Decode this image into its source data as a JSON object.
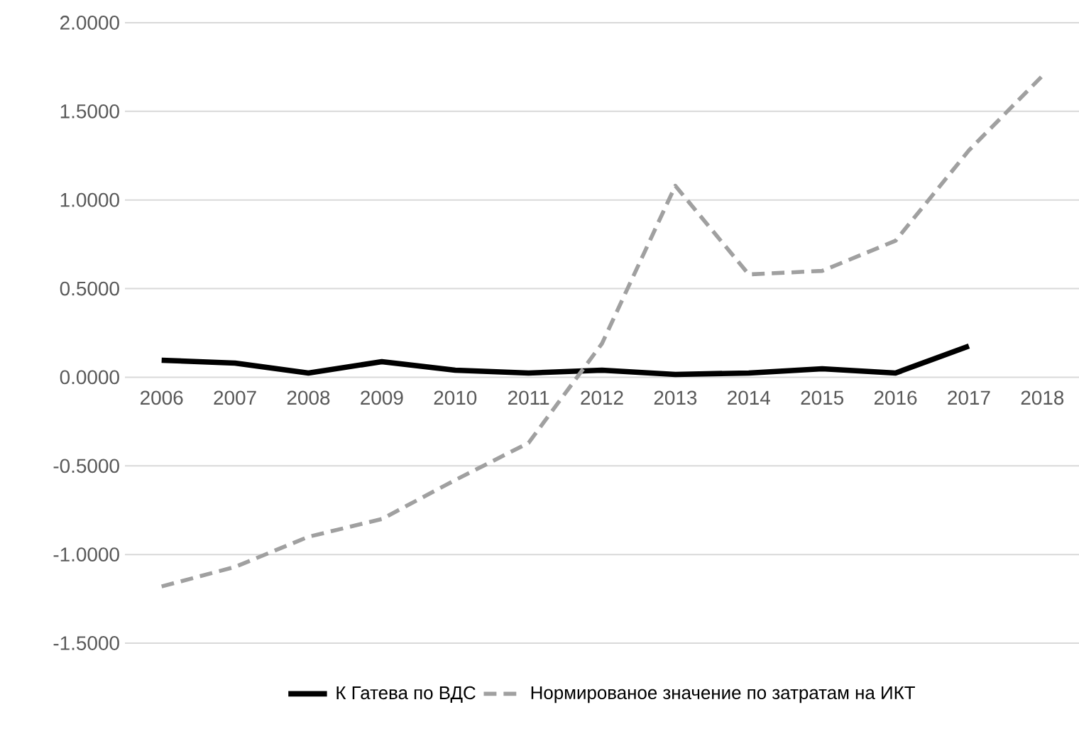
{
  "chart_data": {
    "type": "line",
    "categories": [
      "2006",
      "2007",
      "2008",
      "2009",
      "2010",
      "2011",
      "2012",
      "2013",
      "2014",
      "2015",
      "2016",
      "2017",
      "2018"
    ],
    "series": [
      {
        "name": "К Гатева по ВДС",
        "color": "#000000",
        "line_style": "solid",
        "values": [
          0.096,
          0.08,
          0.024,
          0.088,
          0.04,
          0.024,
          0.04,
          0.016,
          0.024,
          0.048,
          0.024,
          0.176,
          null
        ]
      },
      {
        "name": "Нормированое значение по затратам на ИКТ",
        "color": "#a0a0a0",
        "line_style": "dashed",
        "values": [
          -1.18,
          -1.07,
          -0.9,
          -0.8,
          -0.58,
          -0.37,
          0.19,
          1.08,
          0.58,
          0.6,
          0.77,
          1.28,
          1.7
        ]
      }
    ],
    "ylim": [
      -1.5,
      2.0
    ],
    "yticks": [
      {
        "value": -1.5,
        "label": "-1.5000"
      },
      {
        "value": -1.0,
        "label": "-1.0000"
      },
      {
        "value": -0.5,
        "label": "-0.5000"
      },
      {
        "value": 0,
        "label": "0.0000"
      },
      {
        "value": 0.5,
        "label": "0.5000"
      },
      {
        "value": 1.0,
        "label": "1.0000"
      },
      {
        "value": 1.5,
        "label": "1.5000"
      },
      {
        "value": 2.0,
        "label": "2.0000"
      }
    ],
    "grid": "y",
    "legend": "bottom",
    "marker": "none"
  }
}
